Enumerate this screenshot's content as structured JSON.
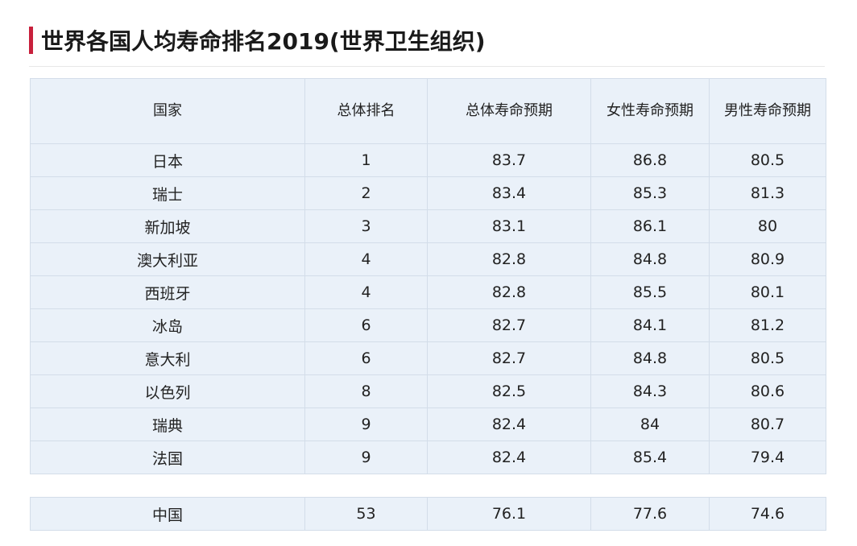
{
  "title": "世界各国人均寿命排名2019(世界卫生组织)",
  "accent": "#c8203c",
  "headers": [
    "国家",
    "总体排名",
    "总体寿命预期",
    "女性寿命预期",
    "男性寿命预期"
  ],
  "rows": [
    [
      "日本",
      "1",
      "83.7",
      "86.8",
      "80.5"
    ],
    [
      "瑞士",
      "2",
      "83.4",
      "85.3",
      "81.3"
    ],
    [
      "新加坡",
      "3",
      "83.1",
      "86.1",
      "80"
    ],
    [
      "澳大利亚",
      "4",
      "82.8",
      "84.8",
      "80.9"
    ],
    [
      "西班牙",
      "4",
      "82.8",
      "85.5",
      "80.1"
    ],
    [
      "冰岛",
      "6",
      "82.7",
      "84.1",
      "81.2"
    ],
    [
      "意大利",
      "6",
      "82.7",
      "84.8",
      "80.5"
    ],
    [
      "以色列",
      "8",
      "82.5",
      "84.3",
      "80.6"
    ],
    [
      "瑞典",
      "9",
      "82.4",
      "84",
      "80.7"
    ],
    [
      "法国",
      "9",
      "82.4",
      "85.4",
      "79.4"
    ]
  ],
  "china_row": [
    "中国",
    "53",
    "76.1",
    "77.6",
    "74.6"
  ]
}
